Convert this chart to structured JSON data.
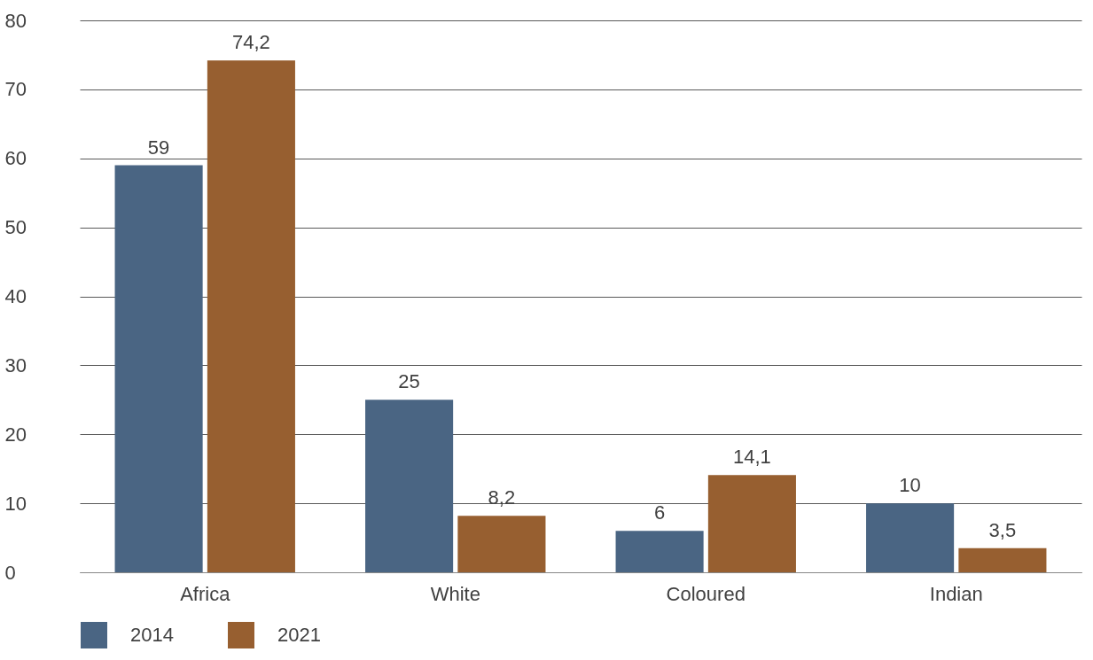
{
  "chart_data": {
    "type": "bar",
    "categories": [
      "Africa",
      "White",
      "Coloured",
      "Indian"
    ],
    "series": [
      {
        "name": "2014",
        "color": "#4a6583",
        "values": [
          59,
          25,
          6,
          10
        ],
        "value_labels": [
          "59",
          "25",
          "6",
          "10"
        ]
      },
      {
        "name": "2021",
        "color": "#975f30",
        "values": [
          74.2,
          8.2,
          14.1,
          3.5
        ],
        "value_labels": [
          "74,2",
          "8,2",
          "14,1",
          "3,5"
        ]
      }
    ],
    "ylim": [
      0,
      80
    ],
    "yticks": [
      0,
      10,
      20,
      30,
      40,
      50,
      60,
      70,
      80
    ],
    "grid": "y",
    "legend": "bottom left"
  }
}
